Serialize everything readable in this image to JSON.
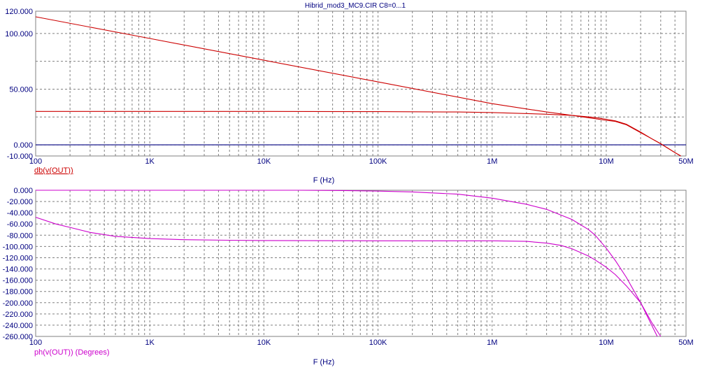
{
  "title": "Hibrid_mod3_MC9.CIR C8=0...1",
  "colors": {
    "background": "#ffffff",
    "grid": "#808080",
    "axis_text": "#000080",
    "gain_curve": "#cc0000",
    "phase_curve": "#cc00cc",
    "zero_line": "#000080"
  },
  "chart_data": [
    {
      "type": "line",
      "x_scale": "log",
      "xlim": [
        100,
        50000000
      ],
      "ylim": [
        -10,
        120
      ],
      "xlabel": "F (Hz)",
      "ylabel": "",
      "trace_label": "db(v(OUT))",
      "x_ticks": [
        {
          "value": 100,
          "label": "100"
        },
        {
          "value": 1000,
          "label": "1K"
        },
        {
          "value": 10000,
          "label": "10K"
        },
        {
          "value": 100000,
          "label": "100K"
        },
        {
          "value": 1000000,
          "label": "1M"
        },
        {
          "value": 10000000,
          "label": "10M"
        },
        {
          "value": 50000000,
          "label": "50M"
        }
      ],
      "y_ticks": [
        {
          "value": 120,
          "label": "120.000"
        },
        {
          "value": 100,
          "label": "100.000"
        },
        {
          "value": 50,
          "label": "50.000"
        },
        {
          "value": 0,
          "label": "0.000"
        },
        {
          "value": -10,
          "label": "-10.000"
        }
      ],
      "y_grid": [
        120,
        100,
        75,
        50,
        25,
        0,
        -10
      ],
      "series": [
        {
          "x": [
            100,
            1000,
            10000,
            100000,
            1000000,
            3000000,
            5000000,
            8000000,
            10000000,
            12000000,
            15000000,
            20000000,
            25000000,
            30000000,
            40000000,
            45000000
          ],
          "y": [
            115,
            95.5,
            76,
            56.5,
            37,
            29.5,
            26.5,
            23.5,
            22,
            21,
            18,
            11,
            5.5,
            1,
            -7,
            -10
          ]
        },
        {
          "x": [
            100,
            1000,
            10000,
            100000,
            500000,
            1000000,
            3000000,
            5000000,
            8000000,
            10000000,
            12000000,
            15000000,
            20000000,
            25000000,
            30000000,
            40000000,
            45000000
          ],
          "y": [
            30,
            30,
            30,
            29.8,
            29.5,
            29,
            27.5,
            26.5,
            24.5,
            23,
            21.5,
            18.5,
            11.5,
            5.5,
            1,
            -7,
            -10
          ]
        }
      ]
    },
    {
      "type": "line",
      "x_scale": "log",
      "xlim": [
        100,
        50000000
      ],
      "ylim": [
        -260,
        0
      ],
      "xlabel": "F (Hz)",
      "ylabel": "",
      "trace_label": "ph(v(OUT)) (Degrees)",
      "x_ticks": [
        {
          "value": 100,
          "label": "100"
        },
        {
          "value": 1000,
          "label": "1K"
        },
        {
          "value": 10000,
          "label": "10K"
        },
        {
          "value": 100000,
          "label": "100K"
        },
        {
          "value": 1000000,
          "label": "1M"
        },
        {
          "value": 10000000,
          "label": "10M"
        },
        {
          "value": 50000000,
          "label": "50M"
        }
      ],
      "y_ticks": [
        {
          "value": 0,
          "label": "0.000"
        },
        {
          "value": -20,
          "label": "-20.000"
        },
        {
          "value": -40,
          "label": "-40.000"
        },
        {
          "value": -60,
          "label": "-60.000"
        },
        {
          "value": -80,
          "label": "-80.000"
        },
        {
          "value": -100,
          "label": "-100.000"
        },
        {
          "value": -120,
          "label": "-120.000"
        },
        {
          "value": -140,
          "label": "-140.000"
        },
        {
          "value": -160,
          "label": "-160.000"
        },
        {
          "value": -180,
          "label": "-180.000"
        },
        {
          "value": -200,
          "label": "-200.000"
        },
        {
          "value": -220,
          "label": "-220.000"
        },
        {
          "value": -240,
          "label": "-240.000"
        },
        {
          "value": -260,
          "label": "-260.000"
        }
      ],
      "series": [
        {
          "x": [
            100,
            150,
            200,
            300,
            500,
            1000,
            2000,
            5000,
            10000,
            100000,
            1000000,
            2000000,
            3000000,
            4000000,
            5000000,
            7000000,
            8000000,
            10000000,
            12000000,
            15000000,
            20000000,
            25000000,
            30000000
          ],
          "y": [
            -48,
            -60,
            -66,
            -75,
            -82,
            -86,
            -88,
            -89,
            -89.5,
            -90,
            -90,
            -91,
            -94,
            -98,
            -104,
            -117,
            -124,
            -137,
            -150,
            -170,
            -200,
            -235,
            -260
          ]
        },
        {
          "x": [
            100,
            10000,
            20000,
            50000,
            100000,
            200000,
            500000,
            1000000,
            2000000,
            3000000,
            5000000,
            7000000,
            8000000,
            10000000,
            12000000,
            15000000,
            20000000,
            25000000,
            28000000
          ],
          "y": [
            0,
            0,
            0,
            -0.5,
            -1.5,
            -3,
            -7,
            -14,
            -25,
            -34,
            -52,
            -70,
            -80,
            -103,
            -125,
            -155,
            -200,
            -240,
            -260
          ]
        }
      ]
    }
  ]
}
